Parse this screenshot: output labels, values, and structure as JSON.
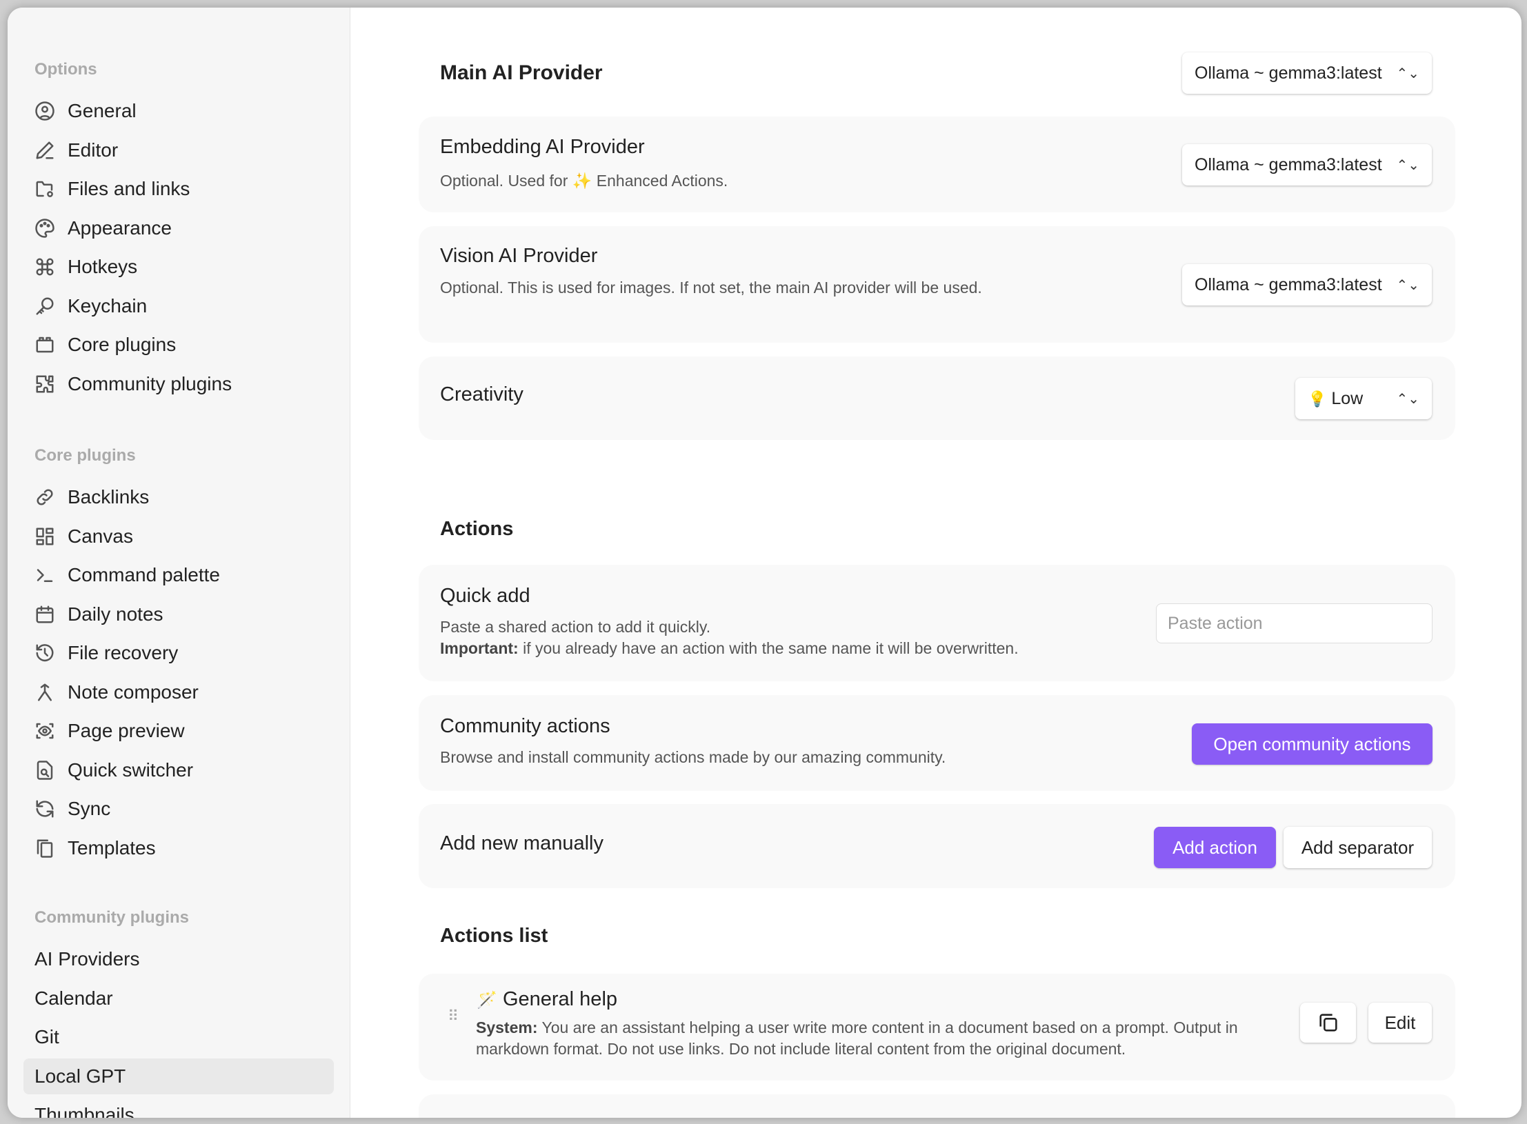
{
  "colors": {
    "accent": "#8a5cf5"
  },
  "sidebar": {
    "sections": [
      {
        "title": "Options",
        "items": [
          {
            "label": "General",
            "icon": "user-circle-icon"
          },
          {
            "label": "Editor",
            "icon": "pencil-icon"
          },
          {
            "label": "Files and links",
            "icon": "folder-cog-icon"
          },
          {
            "label": "Appearance",
            "icon": "palette-icon"
          },
          {
            "label": "Hotkeys",
            "icon": "command-icon"
          },
          {
            "label": "Keychain",
            "icon": "key-icon"
          },
          {
            "label": "Core plugins",
            "icon": "plugin-box-icon"
          },
          {
            "label": "Community plugins",
            "icon": "puzzle-icon"
          }
        ]
      },
      {
        "title": "Core plugins",
        "items": [
          {
            "label": "Backlinks",
            "icon": "link-icon"
          },
          {
            "label": "Canvas",
            "icon": "grid-icon"
          },
          {
            "label": "Command palette",
            "icon": "terminal-icon"
          },
          {
            "label": "Daily notes",
            "icon": "calendar-icon"
          },
          {
            "label": "File recovery",
            "icon": "history-icon"
          },
          {
            "label": "Note composer",
            "icon": "merge-icon"
          },
          {
            "label": "Page preview",
            "icon": "eye-scan-icon"
          },
          {
            "label": "Quick switcher",
            "icon": "file-search-icon"
          },
          {
            "label": "Sync",
            "icon": "sync-icon"
          },
          {
            "label": "Templates",
            "icon": "files-icon"
          }
        ]
      },
      {
        "title": "Community plugins",
        "items": [
          {
            "label": "AI Providers"
          },
          {
            "label": "Calendar"
          },
          {
            "label": "Git"
          },
          {
            "label": "Local GPT",
            "selected": true
          },
          {
            "label": "Thumbnails"
          }
        ]
      }
    ]
  },
  "main": {
    "main_provider": {
      "title": "Main AI Provider",
      "value": "Ollama ~ gemma3:latest"
    },
    "embedding": {
      "title": "Embedding AI Provider",
      "desc_pre": "Optional. Used for",
      "desc_icon": "sparkles-icon",
      "desc_post": "Enhanced Actions.",
      "value": "Ollama ~ gemma3:latest"
    },
    "vision": {
      "title": "Vision AI Provider",
      "desc": "Optional. This is used for images. If not set, the main AI provider will be used.",
      "value": "Ollama ~ gemma3:latest"
    },
    "creativity": {
      "title": "Creativity",
      "value": "Low",
      "icon": "lightbulb-icon"
    },
    "actions_heading": "Actions",
    "quick_add": {
      "title": "Quick add",
      "desc": "Paste a shared action to add it quickly.",
      "important_label": "Important:",
      "important_text": " if you already have an action with the same name it will be overwritten.",
      "placeholder": "Paste action"
    },
    "community": {
      "title": "Community actions",
      "desc": "Browse and install community actions made by our amazing community.",
      "button": "Open community actions"
    },
    "manual": {
      "title": "Add new manually",
      "add_action": "Add action",
      "add_separator": "Add separator"
    },
    "actions_list_heading": "Actions list",
    "actions": [
      {
        "icon": "magic-wand-icon",
        "title": "General help",
        "system_label": "System:",
        "system_text": " You are an assistant helping a user write more content in a document based on a prompt. Output in markdown format. Do not use links. Do not include literal content from the original document.",
        "edit": "Edit"
      }
    ]
  }
}
